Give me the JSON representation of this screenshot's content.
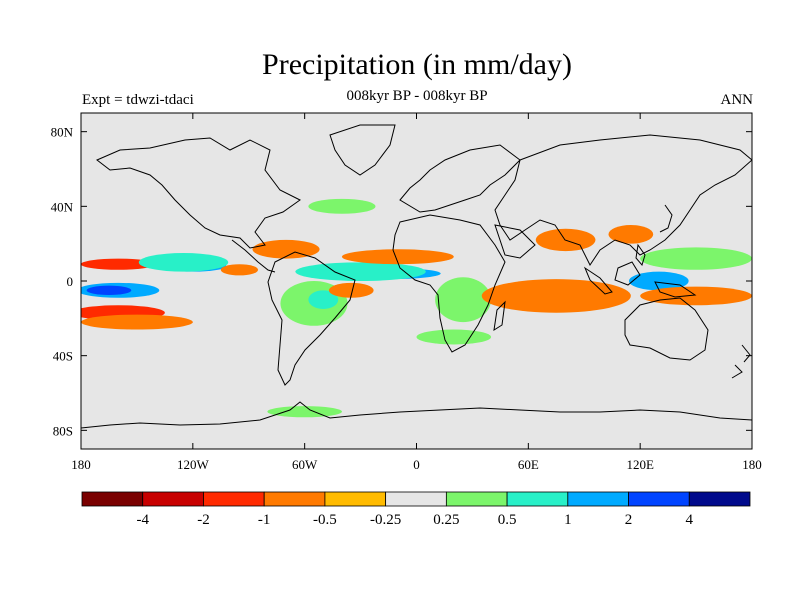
{
  "title": "Precipitation (in mm/day)",
  "subtitle": "008kyr BP - 008kyr BP",
  "experiment_label": "Expt = tdwzi-tdaci",
  "season_label": "ANN",
  "map": {
    "projection": "cylindrical-equidistant",
    "lon_range": [
      -180,
      180
    ],
    "lat_range": [
      -90,
      90
    ],
    "background_color": "#e6e6e6",
    "coastline_color": "#000000"
  },
  "axes": {
    "x_ticks": [
      {
        "value": -180,
        "label": "180"
      },
      {
        "value": -120,
        "label": "120W"
      },
      {
        "value": -60,
        "label": "60W"
      },
      {
        "value": 0,
        "label": "0"
      },
      {
        "value": 60,
        "label": "60E"
      },
      {
        "value": 120,
        "label": "120E"
      },
      {
        "value": 180,
        "label": "180"
      }
    ],
    "y_ticks": [
      {
        "value": 80,
        "label": "80N"
      },
      {
        "value": 40,
        "label": "40N"
      },
      {
        "value": 0,
        "label": "0"
      },
      {
        "value": -40,
        "label": "40S"
      },
      {
        "value": -80,
        "label": "80S"
      }
    ]
  },
  "colorbar": {
    "colors": [
      "#7a0000",
      "#c80000",
      "#ff2a00",
      "#ff7a00",
      "#ffbb00",
      "#e6e6e6",
      "#7cf56b",
      "#28f0c8",
      "#00aaff",
      "#0044ff",
      "#000a8c"
    ],
    "labels": [
      "-4",
      "-2",
      "-1",
      "-0.5",
      "-0.25",
      "0.25",
      "0.5",
      "1",
      "2",
      "4"
    ]
  },
  "anomaly_regions": [
    {
      "name": "central-pacific-south-blue",
      "lon": -160,
      "lat": -5,
      "rlon": 22,
      "rlat": 4,
      "color": "#00aaff"
    },
    {
      "name": "central-pacific-south-deep-blue",
      "lon": -165,
      "lat": -5,
      "rlon": 12,
      "rlat": 2.5,
      "color": "#0044ff"
    },
    {
      "name": "south-pacific-red-band",
      "lon": -160,
      "lat": -17,
      "rlon": 25,
      "rlat": 4,
      "color": "#ff2a00"
    },
    {
      "name": "south-pacific-orange-band",
      "lon": -150,
      "lat": -22,
      "rlon": 30,
      "rlat": 4,
      "color": "#ff7a00"
    },
    {
      "name": "north-pacific-itcz-red",
      "lon": -160,
      "lat": 9,
      "rlon": 20,
      "rlat": 3,
      "color": "#ff2a00"
    },
    {
      "name": "east-pacific-itcz-blue",
      "lon": -120,
      "lat": 8,
      "rlon": 18,
      "rlat": 3,
      "color": "#00aaff"
    },
    {
      "name": "east-pacific-cyan",
      "lon": -125,
      "lat": 10,
      "rlon": 24,
      "rlat": 5,
      "color": "#28f0c8"
    },
    {
      "name": "east-pacific-orange",
      "lon": -95,
      "lat": 6,
      "rlon": 10,
      "rlat": 3,
      "color": "#ff7a00"
    },
    {
      "name": "central-america-orange",
      "lon": -70,
      "lat": 17,
      "rlon": 18,
      "rlat": 5,
      "color": "#ff7a00"
    },
    {
      "name": "equatorial-atlantic-blue",
      "lon": -15,
      "lat": 4,
      "rlon": 28,
      "rlat": 3,
      "color": "#00aaff"
    },
    {
      "name": "tropical-atlantic-cyan",
      "lon": -30,
      "lat": 5,
      "rlon": 35,
      "rlat": 5,
      "color": "#28f0c8"
    },
    {
      "name": "north-africa-orange",
      "lon": -10,
      "lat": 13,
      "rlon": 30,
      "rlat": 4,
      "color": "#ff7a00"
    },
    {
      "name": "south-america-green",
      "lon": -55,
      "lat": -12,
      "rlon": 18,
      "rlat": 12,
      "color": "#7cf56b"
    },
    {
      "name": "south-america-cyan",
      "lon": -50,
      "lat": -10,
      "rlon": 8,
      "rlat": 5,
      "color": "#28f0c8"
    },
    {
      "name": "atlantic-orange",
      "lon": -35,
      "lat": -5,
      "rlon": 12,
      "rlat": 4,
      "color": "#ff7a00"
    },
    {
      "name": "africa-green",
      "lon": 25,
      "lat": -10,
      "rlon": 15,
      "rlat": 12,
      "color": "#7cf56b"
    },
    {
      "name": "indian-ocean-red",
      "lon": 75,
      "lat": -7,
      "rlon": 28,
      "rlat": 6,
      "color": "#ff2a00"
    },
    {
      "name": "indian-ocean-orange",
      "lon": 75,
      "lat": -8,
      "rlon": 40,
      "rlat": 9,
      "color": "#ff7a00"
    },
    {
      "name": "india-orange",
      "lon": 80,
      "lat": 22,
      "rlon": 16,
      "rlat": 6,
      "color": "#ff7a00"
    },
    {
      "name": "maritime-continent-deep-blue",
      "lon": 130,
      "lat": 0,
      "rlon": 10,
      "rlat": 3,
      "color": "#0044ff"
    },
    {
      "name": "maritime-continent-blue",
      "lon": 130,
      "lat": 0,
      "rlon": 16,
      "rlat": 5,
      "color": "#00aaff"
    },
    {
      "name": "west-pacific-orange",
      "lon": 150,
      "lat": -8,
      "rlon": 30,
      "rlat": 5,
      "color": "#ff7a00"
    },
    {
      "name": "west-pacific-north-green",
      "lon": 150,
      "lat": 12,
      "rlon": 30,
      "rlat": 6,
      "color": "#7cf56b"
    },
    {
      "name": "east-asia-orange",
      "lon": 115,
      "lat": 25,
      "rlon": 12,
      "rlat": 5,
      "color": "#ff7a00"
    },
    {
      "name": "southern-ocean-green",
      "lon": 20,
      "lat": -30,
      "rlon": 20,
      "rlat": 4,
      "color": "#7cf56b"
    },
    {
      "name": "north-atlantic-green",
      "lon": -40,
      "lat": 40,
      "rlon": 18,
      "rlat": 4,
      "color": "#7cf56b"
    },
    {
      "name": "antarctic-green",
      "lon": -60,
      "lat": -70,
      "rlon": 20,
      "rlat": 3,
      "color": "#7cf56b"
    }
  ]
}
